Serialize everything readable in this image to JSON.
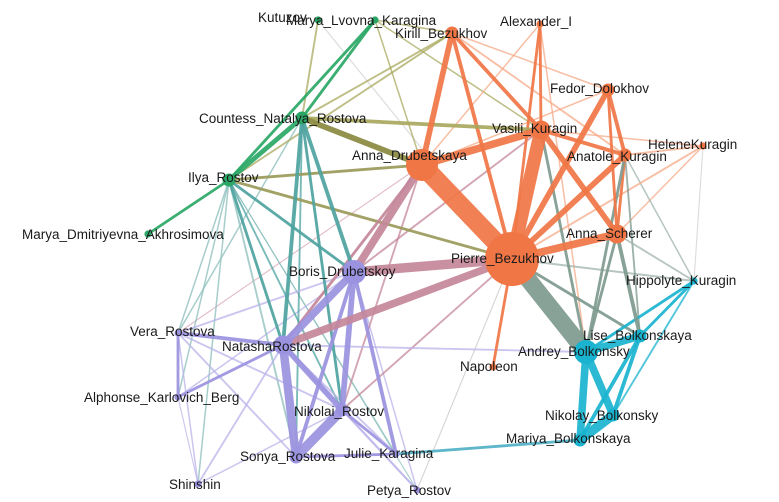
{
  "colors": {
    "orange": "#f07645",
    "green": "#2aa766",
    "purple": "#9b93e0",
    "cyan": "#19b3cf"
  },
  "nodes": [
    {
      "id": "kutuzov",
      "label": "Kutuzov",
      "group": "green",
      "size": 1
    },
    {
      "id": "marya_lvovna",
      "label": "Marya_Lvovna_Karagina",
      "group": "green",
      "size": 1
    },
    {
      "id": "kirill",
      "label": "Kirill_Bezukhov",
      "group": "orange",
      "size": 2
    },
    {
      "id": "alexander",
      "label": "Alexander_I",
      "group": "orange",
      "size": 1
    },
    {
      "id": "fedor",
      "label": "Fedor_Dolokhov",
      "group": "orange",
      "size": 2
    },
    {
      "id": "countess",
      "label": "Countess_Natalya_Rostova",
      "group": "green",
      "size": 2
    },
    {
      "id": "vasili",
      "label": "Vasili_Kuragin",
      "group": "orange",
      "size": 3
    },
    {
      "id": "helene",
      "label": "HeleneKuragin",
      "group": "orange",
      "size": 1
    },
    {
      "id": "anna_d",
      "label": "Anna_Drubetskaya",
      "group": "orange",
      "size": 5
    },
    {
      "id": "anatole",
      "label": "Anatole_Kuragin",
      "group": "orange",
      "size": 2
    },
    {
      "id": "ilya",
      "label": "Ilya_Rostov",
      "group": "green",
      "size": 2
    },
    {
      "id": "marya_d",
      "label": "Marya_Dmitriyevna_Akhrosimova",
      "group": "green",
      "size": 1
    },
    {
      "id": "anna_s",
      "label": "Anna_Scherer",
      "group": "orange",
      "size": 3
    },
    {
      "id": "pierre",
      "label": "Pierre_Bezukhov",
      "group": "orange",
      "size": 10
    },
    {
      "id": "boris",
      "label": "Boris_Drubetskoy",
      "group": "purple",
      "size": 4
    },
    {
      "id": "hippolyte",
      "label": "Hippolyte_Kuragin",
      "group": "cyan",
      "size": 1
    },
    {
      "id": "vera",
      "label": "Vera_Rostova",
      "group": "purple",
      "size": 1
    },
    {
      "id": "lise",
      "label": "Lise_Bolkonskaya",
      "group": "cyan",
      "size": 2
    },
    {
      "id": "natasha",
      "label": "NatashaRostova",
      "group": "purple",
      "size": 3
    },
    {
      "id": "andrey",
      "label": "Andrey_Bolkonsky",
      "group": "cyan",
      "size": 4
    },
    {
      "id": "napoleon",
      "label": "Napoleon",
      "group": "orange",
      "size": 1
    },
    {
      "id": "alphonse",
      "label": "Alphonse_Karlovich_Berg",
      "group": "purple",
      "size": 1
    },
    {
      "id": "nikolai",
      "label": "Nikolai_Rostov",
      "group": "purple",
      "size": 2
    },
    {
      "id": "nikolay_b",
      "label": "Nikolay_Bolkonsky",
      "group": "cyan",
      "size": 2
    },
    {
      "id": "mariya_b",
      "label": "Mariya_Bolkonskaya",
      "group": "cyan",
      "size": 2
    },
    {
      "id": "julie",
      "label": "Julie_Karagina",
      "group": "purple",
      "size": 1
    },
    {
      "id": "sonya",
      "label": "Sonya_Rostova",
      "group": "purple",
      "size": 2
    },
    {
      "id": "shinshin",
      "label": "Shinshin",
      "group": "purple",
      "size": 1
    },
    {
      "id": "petya",
      "label": "Petya_Rostov",
      "group": "purple",
      "size": 1
    }
  ],
  "edges": [
    {
      "source": "pierre",
      "target": "anna_d",
      "weight": 10,
      "color": "#f07645"
    },
    {
      "source": "pierre",
      "target": "vasili",
      "weight": 7,
      "color": "#f07645"
    },
    {
      "source": "pierre",
      "target": "andrey",
      "weight": 9,
      "color": "#7f9a8e"
    },
    {
      "source": "pierre",
      "target": "boris",
      "weight": 5,
      "color": "#c4879a"
    },
    {
      "source": "pierre",
      "target": "natasha",
      "weight": 4,
      "color": "#c4879a"
    },
    {
      "source": "pierre",
      "target": "anna_s",
      "weight": 4,
      "color": "#f07645"
    },
    {
      "source": "pierre",
      "target": "anatole",
      "weight": 3,
      "color": "#f07645"
    },
    {
      "source": "pierre",
      "target": "fedor",
      "weight": 3,
      "color": "#f07645"
    },
    {
      "source": "pierre",
      "target": "kirill",
      "weight": 2,
      "color": "#f07645"
    },
    {
      "source": "pierre",
      "target": "alexander",
      "weight": 1.5,
      "color": "#f07645"
    },
    {
      "source": "pierre",
      "target": "napoleon",
      "weight": 1.5,
      "color": "#f07645"
    },
    {
      "source": "pierre",
      "target": "helene",
      "weight": 1,
      "color": "#f5a987"
    },
    {
      "source": "pierre",
      "target": "ilya",
      "weight": 1.5,
      "color": "#9a9a5a"
    },
    {
      "source": "pierre",
      "target": "hippolyte",
      "weight": 1,
      "color": "#9fb3ab"
    },
    {
      "source": "pierre",
      "target": "lise",
      "weight": 1.5,
      "color": "#7f9a8e"
    },
    {
      "source": "pierre",
      "target": "nikolai",
      "weight": 1,
      "color": "#c4879a"
    },
    {
      "source": "pierre",
      "target": "petya",
      "weight": 0.6,
      "color": "#c7c7c7"
    },
    {
      "source": "vasili",
      "target": "anna_d",
      "weight": 4,
      "color": "#f07645"
    },
    {
      "source": "vasili",
      "target": "anna_s",
      "weight": 3,
      "color": "#f07645"
    },
    {
      "source": "vasili",
      "target": "kirill",
      "weight": 2,
      "color": "#f07645"
    },
    {
      "source": "vasili",
      "target": "alexander",
      "weight": 1.5,
      "color": "#f07645"
    },
    {
      "source": "vasili",
      "target": "anatole",
      "weight": 2,
      "color": "#f07645"
    },
    {
      "source": "vasili",
      "target": "andrey",
      "weight": 1.5,
      "color": "#7f9a8e"
    },
    {
      "source": "vasili",
      "target": "countess",
      "weight": 2,
      "color": "#a8a85e"
    },
    {
      "source": "vasili",
      "target": "boris",
      "weight": 1,
      "color": "#c4879a"
    },
    {
      "source": "vasili",
      "target": "helene",
      "weight": 0.8,
      "color": "#f5a987"
    },
    {
      "source": "vasili",
      "target": "marya_lvovna",
      "weight": 0.8,
      "color": "#a8a85e"
    },
    {
      "source": "anna_d",
      "target": "kirill",
      "weight": 3,
      "color": "#f07645"
    },
    {
      "source": "anna_d",
      "target": "boris",
      "weight": 4,
      "color": "#c4879a"
    },
    {
      "source": "anna_d",
      "target": "countess",
      "weight": 3,
      "color": "#8a8a40"
    },
    {
      "source": "anna_d",
      "target": "ilya",
      "weight": 1.5,
      "color": "#9a9a5a"
    },
    {
      "source": "anna_d",
      "target": "natasha",
      "weight": 1.5,
      "color": "#c4879a"
    },
    {
      "source": "anna_d",
      "target": "fedor",
      "weight": 0.8,
      "color": "#f5a987"
    },
    {
      "source": "anna_d",
      "target": "marya_lvovna",
      "weight": 0.8,
      "color": "#a8a85e"
    },
    {
      "source": "anna_d",
      "target": "nikolai",
      "weight": 1,
      "color": "#c4879a"
    },
    {
      "source": "anna_d",
      "target": "vera",
      "weight": 0.6,
      "color": "#d8a6b5"
    },
    {
      "source": "anatole",
      "target": "fedor",
      "weight": 2,
      "color": "#f07645"
    },
    {
      "source": "anatole",
      "target": "anna_s",
      "weight": 1.5,
      "color": "#f07645"
    },
    {
      "source": "anatole",
      "target": "helene",
      "weight": 1,
      "color": "#f5a987"
    },
    {
      "source": "anatole",
      "target": "kirill",
      "weight": 1,
      "color": "#f5a987"
    },
    {
      "source": "anatole",
      "target": "andrey",
      "weight": 1.5,
      "color": "#7f9a8e"
    },
    {
      "source": "anatole",
      "target": "lise",
      "weight": 1,
      "color": "#7f9a8e"
    },
    {
      "source": "fedor",
      "target": "anna_s",
      "weight": 1.5,
      "color": "#f07645"
    },
    {
      "source": "fedor",
      "target": "kirill",
      "weight": 0.8,
      "color": "#f5a987"
    },
    {
      "source": "anna_s",
      "target": "andrey",
      "weight": 1.5,
      "color": "#7f9a8e"
    },
    {
      "source": "anna_s",
      "target": "hippolyte",
      "weight": 1,
      "color": "#9fb3ab"
    },
    {
      "source": "anna_s",
      "target": "lise",
      "weight": 2,
      "color": "#7f9a8e"
    },
    {
      "source": "anna_s",
      "target": "helene",
      "weight": 0.8,
      "color": "#f5a987"
    },
    {
      "source": "kirill",
      "target": "countess",
      "weight": 1,
      "color": "#a8a85e"
    },
    {
      "source": "kirill",
      "target": "marya_lvovna",
      "weight": 0.8,
      "color": "#a8a85e"
    },
    {
      "source": "kirill",
      "target": "ilya",
      "weight": 1,
      "color": "#a8a85e"
    },
    {
      "source": "alexander",
      "target": "andrey",
      "weight": 0.8,
      "color": "#f5a987"
    },
    {
      "source": "alexander",
      "target": "anna_d",
      "weight": 0.8,
      "color": "#f5a987"
    },
    {
      "source": "marya_lvovna",
      "target": "ilya",
      "weight": 1.5,
      "color": "#2aa766"
    },
    {
      "source": "marya_lvovna",
      "target": "countess",
      "weight": 1.5,
      "color": "#2aa766"
    },
    {
      "source": "kutuzov",
      "target": "andrey",
      "weight": 0.6,
      "color": "#d0d0d0"
    },
    {
      "source": "kutuzov",
      "target": "countess",
      "weight": 1,
      "color": "#a8a85e"
    },
    {
      "source": "countess",
      "target": "ilya",
      "weight": 2.5,
      "color": "#2aa766"
    },
    {
      "source": "countess",
      "target": "boris",
      "weight": 2,
      "color": "#4ea3a0"
    },
    {
      "source": "countess",
      "target": "natasha",
      "weight": 2,
      "color": "#4ea3a0"
    },
    {
      "source": "countess",
      "target": "nikolai",
      "weight": 1.5,
      "color": "#4ea3a0"
    },
    {
      "source": "countess",
      "target": "sonya",
      "weight": 1,
      "color": "#4ea3a0"
    },
    {
      "source": "countess",
      "target": "vera",
      "weight": 0.8,
      "color": "#8bbdbb"
    },
    {
      "source": "ilya",
      "target": "marya_d",
      "weight": 1.5,
      "color": "#2aa766"
    },
    {
      "source": "ilya",
      "target": "boris",
      "weight": 1.5,
      "color": "#4ea3a0"
    },
    {
      "source": "ilya",
      "target": "natasha",
      "weight": 1.5,
      "color": "#4ea3a0"
    },
    {
      "source": "ilya",
      "target": "nikolai",
      "weight": 1,
      "color": "#4ea3a0"
    },
    {
      "source": "ilya",
      "target": "sonya",
      "weight": 1,
      "color": "#8bbdbb"
    },
    {
      "source": "ilya",
      "target": "vera",
      "weight": 0.8,
      "color": "#8bbdbb"
    },
    {
      "source": "ilya",
      "target": "alphonse",
      "weight": 0.8,
      "color": "#8bbdbb"
    },
    {
      "source": "ilya",
      "target": "shinshin",
      "weight": 0.8,
      "color": "#8bbdbb"
    },
    {
      "source": "ilya",
      "target": "petya",
      "weight": 0.6,
      "color": "#8bbdbb"
    },
    {
      "source": "ilya",
      "target": "julie",
      "weight": 0.6,
      "color": "#8bbdbb"
    },
    {
      "source": "boris",
      "target": "natasha",
      "weight": 4,
      "color": "#9b93e0"
    },
    {
      "source": "boris",
      "target": "nikolai",
      "weight": 3,
      "color": "#9b93e0"
    },
    {
      "source": "boris",
      "target": "sonya",
      "weight": 2,
      "color": "#9b93e0"
    },
    {
      "source": "boris",
      "target": "julie",
      "weight": 2,
      "color": "#9b93e0"
    },
    {
      "source": "boris",
      "target": "vera",
      "weight": 1,
      "color": "#b9b3ea"
    },
    {
      "source": "boris",
      "target": "petya",
      "weight": 0.8,
      "color": "#b9b3ea"
    },
    {
      "source": "boris",
      "target": "alphonse",
      "weight": 0.8,
      "color": "#b9b3ea"
    },
    {
      "source": "natasha",
      "target": "nikolai",
      "weight": 3,
      "color": "#9b93e0"
    },
    {
      "source": "natasha",
      "target": "sonya",
      "weight": 4.5,
      "color": "#9b93e0"
    },
    {
      "source": "natasha",
      "target": "vera",
      "weight": 2,
      "color": "#9b93e0"
    },
    {
      "source": "natasha",
      "target": "alphonse",
      "weight": 1.5,
      "color": "#9b93e0"
    },
    {
      "source": "natasha",
      "target": "shinshin",
      "weight": 1,
      "color": "#b9b3ea"
    },
    {
      "source": "natasha",
      "target": "julie",
      "weight": 1,
      "color": "#b9b3ea"
    },
    {
      "source": "natasha",
      "target": "andrey",
      "weight": 1,
      "color": "#b9b3ea"
    },
    {
      "source": "natasha",
      "target": "petya",
      "weight": 1,
      "color": "#b9b3ea"
    },
    {
      "source": "nikolai",
      "target": "sonya",
      "weight": 5,
      "color": "#9b93e0"
    },
    {
      "source": "nikolai",
      "target": "julie",
      "weight": 1.5,
      "color": "#9b93e0"
    },
    {
      "source": "nikolai",
      "target": "petya",
      "weight": 1,
      "color": "#b9b3ea"
    },
    {
      "source": "nikolai",
      "target": "vera",
      "weight": 1,
      "color": "#b9b3ea"
    },
    {
      "source": "nikolai",
      "target": "shinshin",
      "weight": 0.8,
      "color": "#b9b3ea"
    },
    {
      "source": "sonya",
      "target": "vera",
      "weight": 1,
      "color": "#b9b3ea"
    },
    {
      "source": "sonya",
      "target": "julie",
      "weight": 1.5,
      "color": "#9b93e0"
    },
    {
      "source": "vera",
      "target": "alphonse",
      "weight": 1.5,
      "color": "#9b93e0"
    },
    {
      "source": "vera",
      "target": "shinshin",
      "weight": 0.8,
      "color": "#b9b3ea"
    },
    {
      "source": "alphonse",
      "target": "shinshin",
      "weight": 0.6,
      "color": "#b9b3ea"
    },
    {
      "source": "julie",
      "target": "mariya_b",
      "weight": 1.5,
      "color": "#4fb0c4"
    },
    {
      "source": "andrey",
      "target": "lise",
      "weight": 4,
      "color": "#19b3cf"
    },
    {
      "source": "andrey",
      "target": "nikolay_b",
      "weight": 4,
      "color": "#19b3cf"
    },
    {
      "source": "andrey",
      "target": "mariya_b",
      "weight": 4,
      "color": "#19b3cf"
    },
    {
      "source": "andrey",
      "target": "hippolyte",
      "weight": 1.5,
      "color": "#19b3cf"
    },
    {
      "source": "lise",
      "target": "hippolyte",
      "weight": 1.5,
      "color": "#19b3cf"
    },
    {
      "source": "lise",
      "target": "mariya_b",
      "weight": 2,
      "color": "#19b3cf"
    },
    {
      "source": "lise",
      "target": "nikolay_b",
      "weight": 2,
      "color": "#19b3cf"
    },
    {
      "source": "nikolay_b",
      "target": "mariya_b",
      "weight": 5,
      "color": "#19b3cf"
    },
    {
      "source": "nikolay_b",
      "target": "hippolyte",
      "weight": 1,
      "color": "#19b3cf"
    },
    {
      "source": "helene",
      "target": "hippolyte",
      "weight": 0.6,
      "color": "#d0d0d0"
    },
    {
      "source": "hippolyte",
      "target": "anatole",
      "weight": 0.8,
      "color": "#9fb3ab"
    }
  ]
}
